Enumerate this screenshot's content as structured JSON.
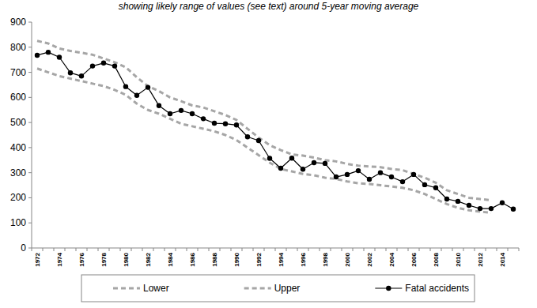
{
  "chart_data": {
    "type": "line",
    "title": "showing likely range of values (see text) around 5-year moving average",
    "categories": [
      "1972",
      null,
      "1974",
      null,
      "1976",
      null,
      "1978",
      null,
      "1980",
      null,
      "1982",
      null,
      "1984",
      null,
      "1986",
      null,
      "1988",
      null,
      "1990",
      null,
      "1992",
      null,
      "1994",
      null,
      "1996",
      null,
      "1998",
      null,
      "2000",
      null,
      "2002",
      null,
      "2004",
      null,
      "2006",
      null,
      "2008",
      null,
      "2010",
      null,
      "2012",
      null,
      "2014",
      null
    ],
    "series": [
      {
        "name": "Lower",
        "color": "#a6a6a6",
        "line_style": "dashed",
        "marker": "none",
        "values": [
          715,
          700,
          685,
          675,
          665,
          655,
          645,
          630,
          610,
          575,
          550,
          535,
          515,
          495,
          485,
          475,
          465,
          450,
          430,
          400,
          370,
          340,
          315,
          305,
          295,
          290,
          280,
          275,
          265,
          258,
          255,
          250,
          245,
          240,
          230,
          215,
          195,
          175,
          160,
          150,
          145,
          140,
          null,
          null
        ]
      },
      {
        "name": "Upper",
        "color": "#a6a6a6",
        "line_style": "dashed",
        "marker": "none",
        "values": [
          825,
          815,
          795,
          785,
          778,
          770,
          755,
          740,
          720,
          680,
          645,
          625,
          600,
          585,
          568,
          560,
          545,
          530,
          510,
          475,
          440,
          410,
          390,
          373,
          368,
          360,
          350,
          345,
          335,
          328,
          325,
          322,
          315,
          310,
          295,
          280,
          260,
          230,
          215,
          200,
          195,
          190,
          null,
          null
        ]
      },
      {
        "name": "Fatal accidents",
        "color": "#000000",
        "line_style": "solid",
        "marker": "circle",
        "values": [
          768,
          780,
          760,
          698,
          685,
          725,
          737,
          725,
          643,
          608,
          640,
          567,
          535,
          548,
          535,
          515,
          497,
          495,
          490,
          443,
          428,
          357,
          318,
          358,
          314,
          340,
          337,
          283,
          293,
          308,
          274,
          300,
          283,
          264,
          293,
          252,
          240,
          195,
          186,
          170,
          157,
          157,
          180,
          155
        ]
      }
    ],
    "ylim": [
      0,
      900
    ],
    "yticks": [
      0,
      100,
      200,
      300,
      400,
      500,
      600,
      700,
      800,
      900
    ],
    "grid": false,
    "legend": "bottom"
  }
}
